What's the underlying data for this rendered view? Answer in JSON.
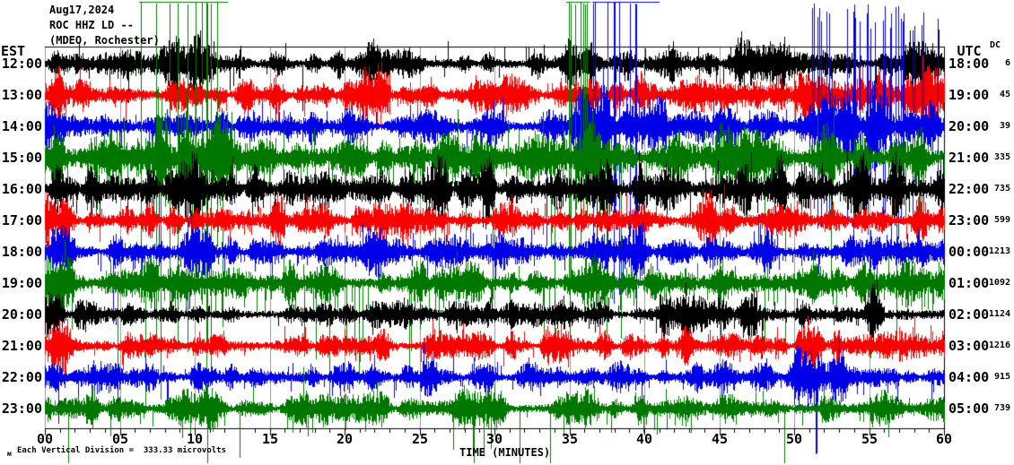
{
  "chart_data": {
    "type": "line",
    "subtype": "seismogram-helicorder",
    "title_lines": [
      "Aug17,2024",
      "ROC HHZ LD --",
      "(MDEO, Rochester)"
    ],
    "xlabel": "TIME (MINUTES)",
    "x_ticks": [
      "00",
      "05",
      "10",
      "15",
      "20",
      "25",
      "30",
      "35",
      "40",
      "45",
      "50",
      "55",
      "60"
    ],
    "x_range_minutes": [
      0,
      60
    ],
    "minutes_per_row": 60,
    "left_axis_header": "EST",
    "right_axis_header": "UTC",
    "dc_header": "DC",
    "scale_note": "Each Vertical Division =  333.33 microvolts",
    "corner_mark": "м",
    "grid": true,
    "legend_position": "none",
    "colors": {
      "black": "#000000",
      "red": "#fb0000",
      "blue": "#0000e8",
      "green": "#007800",
      "grid": "#999999",
      "frame": "#000000"
    },
    "rows": [
      {
        "est": "12:00",
        "utc": "18:00",
        "dc": "6",
        "color": "black",
        "seed": 101,
        "base": 9,
        "spike_p": 0.05,
        "spike_max": 26,
        "down_bias": 0.45,
        "mega": [
          0.003,
          50
        ],
        "bursts": [
          [
            6,
            13,
            2.3
          ],
          [
            19.5,
            23,
            1.7
          ],
          [
            34,
            36.5,
            1.9
          ],
          [
            40,
            42,
            1.35
          ],
          [
            46,
            52.5,
            2.1
          ],
          [
            56.5,
            60,
            1.9
          ]
        ],
        "clips": [],
        "tall": []
      },
      {
        "est": "13:00",
        "utc": "19:00",
        "dc": "45",
        "color": "red",
        "seed": 202,
        "base": 10,
        "spike_p": 0.05,
        "spike_max": 26,
        "down_bias": 0.5,
        "mega": [
          0.003,
          55
        ],
        "bursts": [
          [
            0,
            3,
            1.7
          ],
          [
            8,
            9.5,
            1.35
          ],
          [
            13.5,
            15.5,
            1.5
          ],
          [
            21,
            23,
            2.0
          ],
          [
            30.5,
            33,
            1.5
          ],
          [
            38,
            40,
            1.35
          ],
          [
            45,
            47,
            1.5
          ],
          [
            50,
            52,
            1.35
          ],
          [
            55.5,
            60,
            1.9
          ]
        ],
        "clips": [],
        "tall": []
      },
      {
        "est": "14:00",
        "utc": "20:00",
        "dc": "39",
        "color": "blue",
        "seed": 303,
        "base": 10,
        "spike_p": 0.055,
        "spike_max": 28,
        "down_bias": 0.55,
        "mega": [
          0.006,
          150
        ],
        "bursts": [
          [
            0,
            2,
            1.4
          ],
          [
            12,
            14,
            1.35
          ],
          [
            20,
            22,
            1.4
          ],
          [
            35,
            41.5,
            2.2
          ],
          [
            51,
            60,
            2.4
          ]
        ],
        "clips": [
          [
            36.5,
            41,
            0.18,
            220
          ]
        ],
        "tall": [
          [
            51,
            60,
            4,
            0.22,
            130
          ]
        ]
      },
      {
        "est": "15:00",
        "utc": "21:00",
        "dc": "335",
        "color": "green",
        "seed": 404,
        "base": 14,
        "spike_p": 0.07,
        "spike_max": 52,
        "down_bias": 0.75,
        "mega": [
          0.012,
          210
        ],
        "bursts": [
          [
            0,
            6,
            1.4
          ],
          [
            6,
            12.5,
            2.2
          ],
          [
            25,
            28,
            1.3
          ],
          [
            34.5,
            37,
            1.9
          ],
          [
            42,
            60,
            1.35
          ]
        ],
        "clips": [
          [
            6.3,
            12.2,
            0.09,
            260
          ],
          [
            34.8,
            36.4,
            0.25,
            160
          ]
        ],
        "tall": []
      },
      {
        "est": "16:00",
        "utc": "22:00",
        "dc": "735",
        "color": "black",
        "seed": 505,
        "base": 14,
        "spike_p": 0.06,
        "spike_max": 28,
        "down_bias": 0.5,
        "mega": [
          0.003,
          60
        ],
        "bursts": [
          [
            8,
            12,
            1.45
          ],
          [
            17,
            19,
            1.3
          ],
          [
            26,
            30,
            1.35
          ],
          [
            37,
            39,
            1.3
          ],
          [
            48,
            60,
            1.4
          ]
        ],
        "clips": [],
        "tall": []
      },
      {
        "est": "17:00",
        "utc": "23:00",
        "dc": "599",
        "color": "red",
        "seed": 606,
        "base": 10,
        "spike_p": 0.06,
        "spike_max": 24,
        "down_bias": 0.5,
        "mega": [
          0.003,
          60
        ],
        "bursts": [
          [
            0,
            1.5,
            1.5
          ],
          [
            13.5,
            16,
            1.6
          ],
          [
            22,
            24,
            1.5
          ],
          [
            31,
            33,
            1.4
          ],
          [
            43.5,
            46,
            1.7
          ],
          [
            52,
            56,
            1.6
          ],
          [
            58,
            60,
            1.5
          ]
        ],
        "clips": [],
        "tall": []
      },
      {
        "est": "18:00",
        "utc": "00:00",
        "dc": "1213",
        "color": "blue",
        "seed": 707,
        "base": 10,
        "spike_p": 0.06,
        "spike_max": 26,
        "down_bias": 0.55,
        "mega": [
          0.004,
          80
        ],
        "bursts": [
          [
            0,
            2,
            1.6
          ],
          [
            9,
            11,
            1.4
          ],
          [
            20,
            22.5,
            1.5
          ],
          [
            30,
            32,
            1.4
          ],
          [
            38,
            40.5,
            1.5
          ],
          [
            47,
            49,
            1.4
          ],
          [
            55,
            60,
            1.7
          ]
        ],
        "clips": [],
        "tall": []
      },
      {
        "est": "19:00",
        "utc": "01:00",
        "dc": "1092",
        "color": "green",
        "seed": 808,
        "base": 12,
        "spike_p": 0.07,
        "spike_max": 38,
        "down_bias": 0.8,
        "mega": [
          0.01,
          120
        ],
        "bursts": [
          [
            0,
            2,
            1.4
          ],
          [
            4,
            8,
            1.5
          ],
          [
            15,
            17,
            1.3
          ],
          [
            25,
            28.5,
            1.45
          ],
          [
            36,
            38,
            1.35
          ],
          [
            46.5,
            50,
            1.45
          ],
          [
            57,
            60,
            1.4
          ]
        ],
        "clips": [],
        "tall": []
      },
      {
        "est": "20:00",
        "utc": "02:00",
        "dc": "1124",
        "color": "black",
        "seed": 909,
        "base": 8,
        "spike_p": 0.05,
        "spike_max": 20,
        "down_bias": 0.45,
        "mega": [
          0.002,
          45
        ],
        "bursts": [
          [
            0,
            1.5,
            1.6
          ],
          [
            7,
            9,
            1.4
          ],
          [
            25,
            27,
            1.5
          ],
          [
            41,
            47.5,
            2.1
          ],
          [
            53.5,
            56,
            1.9
          ],
          [
            58.5,
            60,
            1.5
          ]
        ],
        "clips": [],
        "tall": []
      },
      {
        "est": "21:00",
        "utc": "03:00",
        "dc": "1216",
        "color": "red",
        "seed": 1010,
        "base": 8,
        "spike_p": 0.05,
        "spike_max": 20,
        "down_bias": 0.5,
        "mega": [
          0.002,
          45
        ],
        "bursts": [
          [
            0,
            1.5,
            2.1
          ],
          [
            6,
            8,
            1.4
          ],
          [
            20,
            23.5,
            1.6
          ],
          [
            33,
            35,
            1.5
          ],
          [
            42,
            44,
            1.4
          ],
          [
            50,
            53,
            1.6
          ],
          [
            57,
            59.5,
            1.6
          ]
        ],
        "clips": [],
        "tall": []
      },
      {
        "est": "22:00",
        "utc": "04:00",
        "dc": "915",
        "color": "blue",
        "seed": 1111,
        "base": 8,
        "spike_p": 0.05,
        "spike_max": 22,
        "down_bias": 0.55,
        "mega": [
          0.004,
          70
        ],
        "bursts": [
          [
            3,
            5,
            1.4
          ],
          [
            12,
            14.5,
            1.5
          ],
          [
            25,
            27,
            1.9
          ],
          [
            37,
            39,
            1.5
          ],
          [
            44,
            46,
            1.4
          ],
          [
            50,
            57,
            2.1
          ]
        ],
        "clips": [],
        "tall": []
      },
      {
        "est": "23:00",
        "utc": "05:00",
        "dc": "739",
        "color": "green",
        "seed": 1212,
        "base": 9,
        "spike_p": 0.06,
        "spike_max": 30,
        "down_bias": 0.8,
        "mega": [
          0.008,
          85
        ],
        "bursts": [
          [
            3,
            5,
            1.3
          ],
          [
            8,
            11.5,
            1.6
          ],
          [
            17,
            19,
            1.3
          ],
          [
            27,
            30,
            1.7
          ],
          [
            36,
            38.5,
            1.5
          ],
          [
            44,
            46,
            1.4
          ],
          [
            50,
            52,
            1.4
          ],
          [
            55,
            58,
            1.6
          ]
        ],
        "clips": [],
        "tall": []
      }
    ]
  }
}
